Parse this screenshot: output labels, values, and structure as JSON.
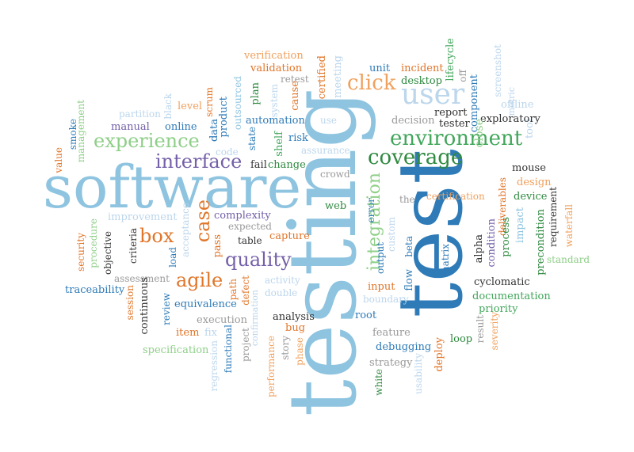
{
  "palette": {
    "blue": "#2e7bb8",
    "light_blue": "#8ec4e0",
    "pale_blue": "#bcd6ec",
    "green": "#41a65a",
    "light_green": "#8fcf88",
    "dark_green": "#2f8a40",
    "orange": "#e0762a",
    "light_orange": "#f0a15e",
    "purple": "#7460a8",
    "gray": "#9a9a9a",
    "dark": "#333333"
  },
  "words": [
    {
      "text": "testing",
      "color": "light_blue"
    },
    {
      "text": "test",
      "color": "blue"
    },
    {
      "text": "software",
      "color": "light_blue"
    },
    {
      "text": "user",
      "color": "pale_blue"
    },
    {
      "text": "click",
      "color": "light_orange"
    },
    {
      "text": "environment",
      "color": "green"
    },
    {
      "text": "coverage",
      "color": "dark_green"
    },
    {
      "text": "experience",
      "color": "light_green"
    },
    {
      "text": "interface",
      "color": "purple"
    },
    {
      "text": "box",
      "color": "orange"
    },
    {
      "text": "agile",
      "color": "orange"
    },
    {
      "text": "quality",
      "color": "purple"
    },
    {
      "text": "case",
      "color": "orange"
    },
    {
      "text": "integration",
      "color": "light_green"
    },
    {
      "text": "verification",
      "color": "light_orange"
    },
    {
      "text": "validation",
      "color": "orange"
    },
    {
      "text": "retest",
      "color": "gray"
    },
    {
      "text": "certified",
      "color": "orange"
    },
    {
      "text": "meeting",
      "color": "pale_blue"
    },
    {
      "text": "unit",
      "color": "blue"
    },
    {
      "text": "incident",
      "color": "orange"
    },
    {
      "text": "lifecycle",
      "color": "green"
    },
    {
      "text": "screenshot",
      "color": "pale_blue"
    },
    {
      "text": "desktop",
      "color": "dark_green"
    },
    {
      "text": "off",
      "color": "gray"
    },
    {
      "text": "offline",
      "color": "pale_blue"
    },
    {
      "text": "metric",
      "color": "pale_blue"
    },
    {
      "text": "tool",
      "color": "pale_blue"
    },
    {
      "text": "report",
      "color": "dark"
    },
    {
      "text": "component",
      "color": "blue"
    },
    {
      "text": "exploratory",
      "color": "dark"
    },
    {
      "text": "tester",
      "color": "dark"
    },
    {
      "text": "decision",
      "color": "gray"
    },
    {
      "text": "automation",
      "color": "blue"
    },
    {
      "text": "plan",
      "color": "dark_green"
    },
    {
      "text": "system",
      "color": "pale_blue"
    },
    {
      "text": "cause",
      "color": "orange"
    },
    {
      "text": "use",
      "color": "pale_blue"
    },
    {
      "text": "partition",
      "color": "pale_blue"
    },
    {
      "text": "black",
      "color": "pale_blue"
    },
    {
      "text": "level",
      "color": "light_orange"
    },
    {
      "text": "scrum",
      "color": "orange"
    },
    {
      "text": "outsourced",
      "color": "light_blue"
    },
    {
      "text": "product",
      "color": "blue"
    },
    {
      "text": "management",
      "color": "light_green"
    },
    {
      "text": "manual",
      "color": "purple"
    },
    {
      "text": "online",
      "color": "blue"
    },
    {
      "text": "data",
      "color": "blue"
    },
    {
      "text": "state",
      "color": "blue"
    },
    {
      "text": "risk",
      "color": "blue"
    },
    {
      "text": "shelf",
      "color": "green"
    },
    {
      "text": "assurance",
      "color": "pale_blue"
    },
    {
      "text": "close",
      "color": "light_green"
    },
    {
      "text": "value",
      "color": "orange"
    },
    {
      "text": "smoke",
      "color": "blue"
    },
    {
      "text": "code",
      "color": "pale_blue"
    },
    {
      "text": "fail",
      "color": "dark"
    },
    {
      "text": "change",
      "color": "dark_green"
    },
    {
      "text": "crowd",
      "color": "gray"
    },
    {
      "text": "mouse",
      "color": "dark"
    },
    {
      "text": "design",
      "color": "light_orange"
    },
    {
      "text": "device",
      "color": "dark_green"
    },
    {
      "text": "certification",
      "color": "light_orange"
    },
    {
      "text": "the",
      "color": "gray"
    },
    {
      "text": "web",
      "color": "dark_green"
    },
    {
      "text": "improvement",
      "color": "pale_blue"
    },
    {
      "text": "complexity",
      "color": "purple"
    },
    {
      "text": "error",
      "color": "blue"
    },
    {
      "text": "custom",
      "color": "pale_blue"
    },
    {
      "text": "deliverables",
      "color": "orange"
    },
    {
      "text": "impact",
      "color": "light_blue"
    },
    {
      "text": "requirement",
      "color": "dark"
    },
    {
      "text": "waterfall",
      "color": "light_orange"
    },
    {
      "text": "standard",
      "color": "light_green"
    },
    {
      "text": "security",
      "color": "orange"
    },
    {
      "text": "procedure",
      "color": "light_green"
    },
    {
      "text": "objective",
      "color": "dark"
    },
    {
      "text": "criteria",
      "color": "dark"
    },
    {
      "text": "load",
      "color": "blue"
    },
    {
      "text": "acceptance",
      "color": "pale_blue"
    },
    {
      "text": "pass",
      "color": "orange"
    },
    {
      "text": "expected",
      "color": "gray"
    },
    {
      "text": "table",
      "color": "dark"
    },
    {
      "text": "capture",
      "color": "orange"
    },
    {
      "text": "output",
      "color": "blue"
    },
    {
      "text": "beta",
      "color": "blue"
    },
    {
      "text": "matrix",
      "color": "blue"
    },
    {
      "text": "alpha",
      "color": "dark"
    },
    {
      "text": "condition",
      "color": "purple"
    },
    {
      "text": "process",
      "color": "dark_green"
    },
    {
      "text": "precondition",
      "color": "dark_green"
    },
    {
      "text": "traceability",
      "color": "blue"
    },
    {
      "text": "assessment",
      "color": "gray"
    },
    {
      "text": "session",
      "color": "orange"
    },
    {
      "text": "continuous",
      "color": "dark"
    },
    {
      "text": "review",
      "color": "blue"
    },
    {
      "text": "path",
      "color": "orange"
    },
    {
      "text": "defect",
      "color": "orange"
    },
    {
      "text": "activity",
      "color": "pale_blue"
    },
    {
      "text": "double",
      "color": "pale_blue"
    },
    {
      "text": "equivalence",
      "color": "blue"
    },
    {
      "text": "input",
      "color": "orange"
    },
    {
      "text": "flow",
      "color": "blue"
    },
    {
      "text": "boundary",
      "color": "pale_blue"
    },
    {
      "text": "cyclomatic",
      "color": "dark"
    },
    {
      "text": "documentation",
      "color": "green"
    },
    {
      "text": "priority",
      "color": "green"
    },
    {
      "text": "execution",
      "color": "gray"
    },
    {
      "text": "item",
      "color": "orange"
    },
    {
      "text": "fix",
      "color": "pale_blue"
    },
    {
      "text": "confirmation",
      "color": "pale_blue"
    },
    {
      "text": "analysis",
      "color": "dark"
    },
    {
      "text": "bug",
      "color": "orange"
    },
    {
      "text": "root",
      "color": "blue"
    },
    {
      "text": "feature",
      "color": "gray"
    },
    {
      "text": "result",
      "color": "gray"
    },
    {
      "text": "severity",
      "color": "light_orange"
    },
    {
      "text": "loop",
      "color": "dark_green"
    },
    {
      "text": "specification",
      "color": "light_green"
    },
    {
      "text": "regression",
      "color": "pale_blue"
    },
    {
      "text": "functional",
      "color": "blue"
    },
    {
      "text": "project",
      "color": "gray"
    },
    {
      "text": "performance",
      "color": "light_orange"
    },
    {
      "text": "story",
      "color": "gray"
    },
    {
      "text": "phase",
      "color": "light_orange"
    },
    {
      "text": "debugging",
      "color": "blue"
    },
    {
      "text": "strategy",
      "color": "gray"
    },
    {
      "text": "white",
      "color": "dark_green"
    },
    {
      "text": "usability",
      "color": "pale_blue"
    },
    {
      "text": "deploy",
      "color": "orange"
    }
  ]
}
